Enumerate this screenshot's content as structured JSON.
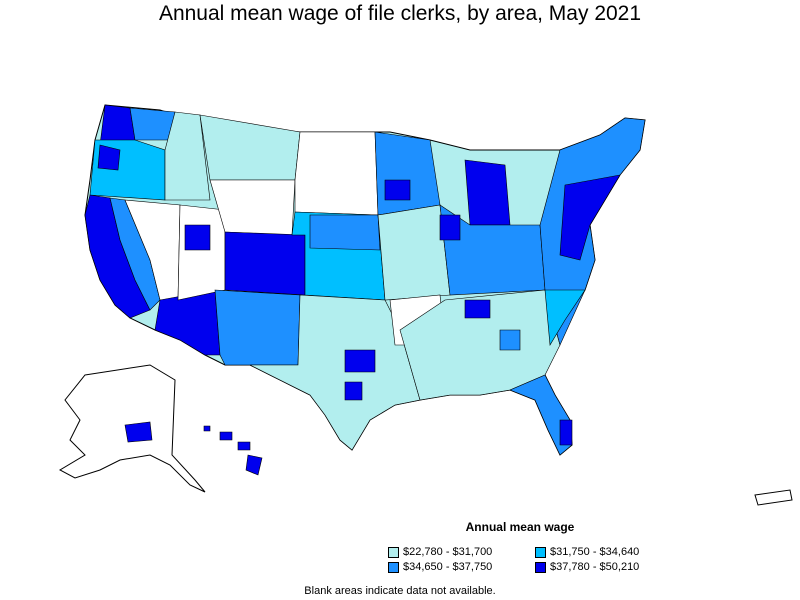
{
  "title": "Annual mean wage of file clerks, by area, May 2021",
  "legend": {
    "title": "Annual mean wage",
    "items": [
      {
        "label": "$22,780 - $31,700",
        "color": "#b2eeee"
      },
      {
        "label": "$31,750 - $34,640",
        "color": "#00bfff"
      },
      {
        "label": "$34,650 - $37,750",
        "color": "#1e90ff"
      },
      {
        "label": "$37,780 - $50,210",
        "color": "#0000ee"
      }
    ]
  },
  "note": "Blank areas indicate data not available.",
  "colors": {
    "tier1": "#b2eeee",
    "tier2": "#00bfff",
    "tier3": "#1e90ff",
    "tier4": "#0000ee",
    "no_data": "#ffffff",
    "border": "#000000"
  }
}
